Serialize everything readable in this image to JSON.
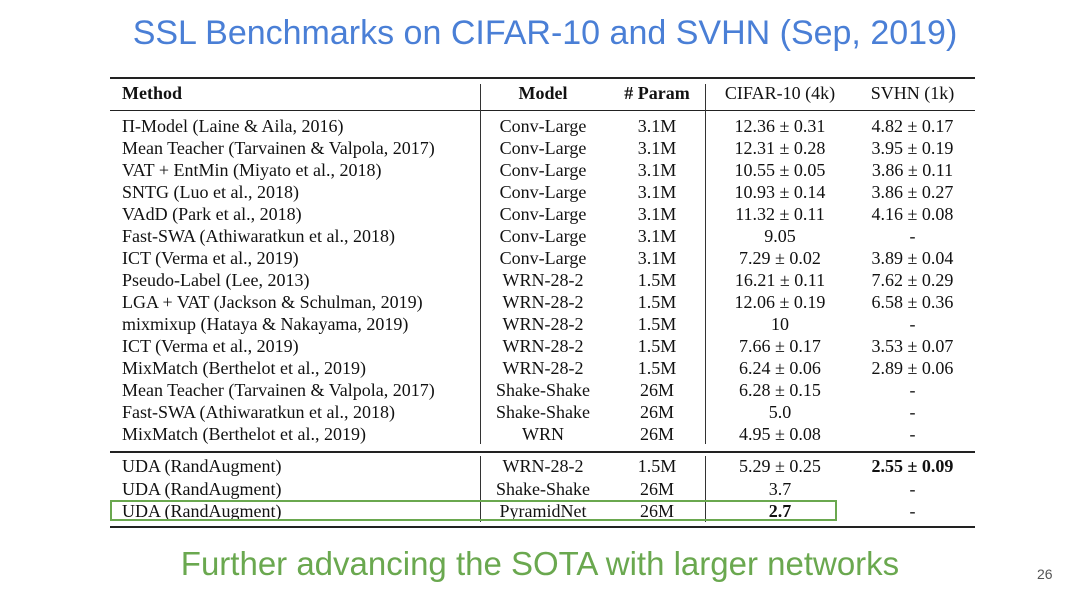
{
  "title": "SSL Benchmarks on CIFAR-10 and SVHN (Sep, 2019)",
  "subtitle": "Further advancing the SOTA with larger networks",
  "page_number": "26",
  "colors": {
    "title": "#4a7fd6",
    "subtitle": "#6aa84f",
    "highlight_box": "#6aa84f"
  },
  "table": {
    "headers": [
      "Method",
      "Model",
      "# Param",
      "CIFAR-10 (4k)",
      "SVHN (1k)"
    ],
    "rows": [
      [
        "Π-Model (Laine & Aila, 2016)",
        "Conv-Large",
        "3.1M",
        "12.36 ± 0.31",
        "4.82 ± 0.17"
      ],
      [
        "Mean Teacher (Tarvainen & Valpola, 2017)",
        "Conv-Large",
        "3.1M",
        "12.31 ± 0.28",
        "3.95 ± 0.19"
      ],
      [
        "VAT + EntMin (Miyato et al., 2018)",
        "Conv-Large",
        "3.1M",
        "10.55 ± 0.05",
        "3.86 ± 0.11"
      ],
      [
        "SNTG (Luo et al., 2018)",
        "Conv-Large",
        "3.1M",
        "10.93 ± 0.14",
        "3.86 ± 0.27"
      ],
      [
        "VAdD (Park et al., 2018)",
        "Conv-Large",
        "3.1M",
        "11.32 ± 0.11",
        "4.16 ± 0.08"
      ],
      [
        "Fast-SWA (Athiwaratkun et al., 2018)",
        "Conv-Large",
        "3.1M",
        "9.05",
        "-"
      ],
      [
        "ICT (Verma et al., 2019)",
        "Conv-Large",
        "3.1M",
        "7.29 ± 0.02",
        "3.89 ± 0.04"
      ],
      [
        "Pseudo-Label (Lee, 2013)",
        "WRN-28-2",
        "1.5M",
        "16.21 ± 0.11",
        "7.62 ± 0.29"
      ],
      [
        "LGA + VAT (Jackson & Schulman, 2019)",
        "WRN-28-2",
        "1.5M",
        "12.06 ± 0.19",
        "6.58 ± 0.36"
      ],
      [
        "mixmixup (Hataya & Nakayama, 2019)",
        "WRN-28-2",
        "1.5M",
        "10",
        "-"
      ],
      [
        "ICT (Verma et al., 2019)",
        "WRN-28-2",
        "1.5M",
        "7.66 ± 0.17",
        "3.53 ± 0.07"
      ],
      [
        "MixMatch (Berthelot et al., 2019)",
        "WRN-28-2",
        "1.5M",
        "6.24 ± 0.06",
        "2.89 ± 0.06"
      ],
      [
        "Mean Teacher (Tarvainen & Valpola, 2017)",
        "Shake-Shake",
        "26M",
        "6.28 ± 0.15",
        "-"
      ],
      [
        "Fast-SWA (Athiwaratkun et al., 2018)",
        "Shake-Shake",
        "26M",
        "5.0",
        "-"
      ],
      [
        "MixMatch (Berthelot et al., 2019)",
        "WRN",
        "26M",
        "4.95 ± 0.08",
        "-"
      ]
    ],
    "uda_rows": [
      [
        "UDA (RandAugment)",
        "WRN-28-2",
        "1.5M",
        "5.29 ± 0.25",
        "2.55 ± 0.09"
      ],
      [
        "UDA (RandAugment)",
        "Shake-Shake",
        "26M",
        "3.7",
        "-"
      ],
      [
        "UDA (RandAugment)",
        "PyramidNet",
        "26M",
        "2.7",
        "-"
      ]
    ],
    "bold_cells": [
      [
        0,
        4
      ],
      [
        2,
        3
      ]
    ]
  }
}
